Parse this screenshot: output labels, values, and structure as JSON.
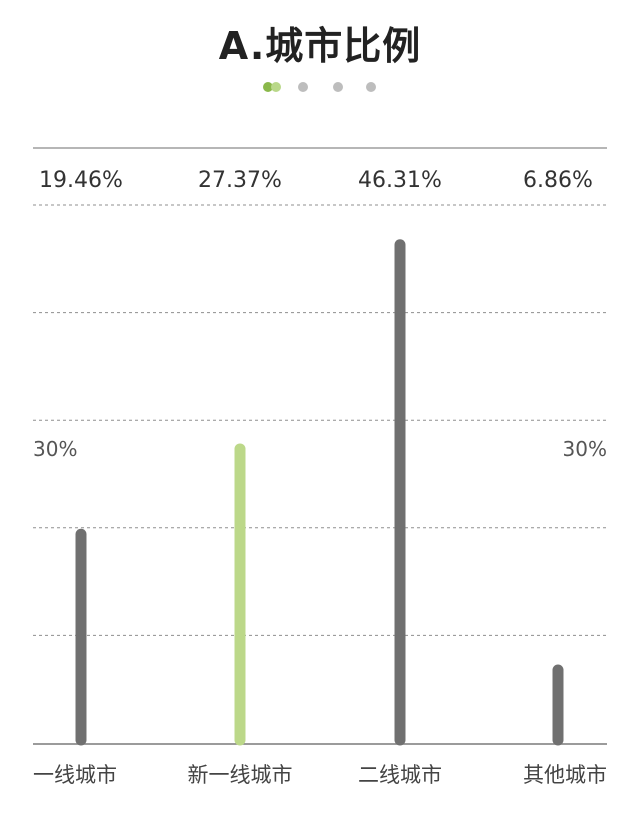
{
  "title": "A.城市比例",
  "pager": {
    "count": 4,
    "active_index": 0,
    "colors": {
      "active_primary": "#8ab84a",
      "active_secondary": "#b9d889",
      "inactive": "#bdbdbd"
    }
  },
  "chart_data": {
    "type": "bar",
    "title": "A.城市比例",
    "categories": [
      "一线城市",
      "新一线城市",
      "二线城市",
      "其他城市"
    ],
    "values": [
      19.46,
      27.37,
      46.31,
      6.86
    ],
    "value_labels": [
      "19.46%",
      "27.37%",
      "46.31%",
      "6.86%"
    ],
    "reference_label_left": "30%",
    "reference_label_right": "30%",
    "ylim": [
      0,
      50
    ],
    "grid": true,
    "bar_colors": [
      "#707070",
      "#bcd889",
      "#707070",
      "#707070"
    ]
  }
}
